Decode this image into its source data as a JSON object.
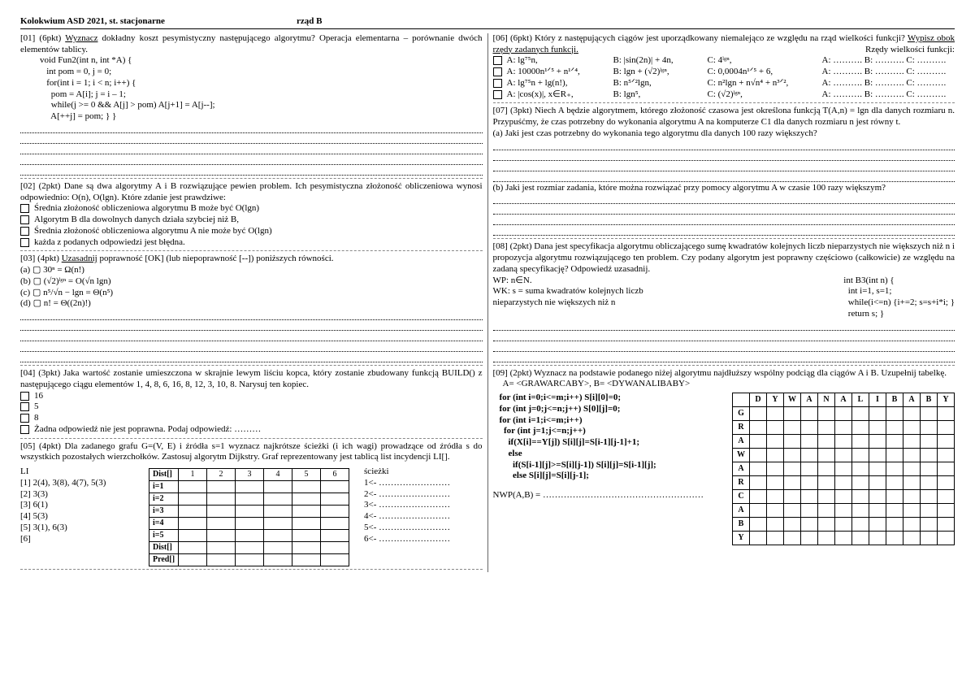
{
  "header": {
    "left": "Kolokwium ASD 2021, st. stacjonarne",
    "right": "rząd B"
  },
  "q01": {
    "head": "[01] (6pkt) ",
    "uword": "Wyznacz",
    "rest": " dokładny koszt pesymistyczny następującego algorytmu? Operacja elementarna – porównanie dwóch elementów tablicy.",
    "code": [
      "void Fun2(int n, int *A) {",
      "   int pom = 0, j = 0;",
      "   for(int i = 1; i < n; i++) {",
      "     pom = A[i]; j = i – 1;",
      "     while(j >= 0 && A[j] > pom) A[j+1] = A[j--];",
      "     A[++j] = pom; } }"
    ]
  },
  "q02": {
    "head": "[02] (2pkt) Dane są dwa algorytmy A i B rozwiązujące pewien problem. Ich pesymistyczna złożoność obliczeniowa wynosi odpowiednio: O(n), O(lgn). Które zdanie jest prawdziwe:",
    "opts": [
      "Średnia złożoność obliczeniowa algorytmu B może być O(lgn)",
      "Algorytm B dla dowolnych danych działa szybciej niż B,",
      "Średnia złożoność obliczeniowa algorytmu A nie może być O(lgn)",
      "każda z podanych odpowiedzi jest błędna."
    ]
  },
  "q03": {
    "head": "[03] (4pkt) ",
    "uword": "Uzasadnij",
    "rest": " poprawność [OK] (lub niepoprawność [--]) poniższych równości.",
    "opts": [
      "(a)   ▢     30ⁿ = Ω(n!)",
      "(b)   ▢     (√2)ˡᵍⁿ = O(√n lgn)",
      "(c)   ▢     n⁵/√n − lgn = Θ(n⁵)",
      "(d)   ▢     n! = Θ((2n)!)"
    ]
  },
  "q04": {
    "head": "[04] (3pkt) Jaka wartość zostanie umieszczona w skrajnie lewym liściu kopca, który zostanie zbudowany funkcją BUILD() z następującego ciągu elementów 1, 4, 8, 6, 16, 8, 12, 3, 10, 8. Narysuj ten kopiec.",
    "opts": [
      "16",
      "5",
      "8",
      "Żadna odpowiedź nie jest poprawna. Podaj odpowiedź: ………"
    ]
  },
  "q05": {
    "head": "[05] (4pkt) Dla zadanego grafu G=(V, E) i źródła s=1 wyznacz najkrótsze ścieżki (i ich wagi) prowadzące od źródła s do wszystkich pozostałych wierzchołków. Zastosuj algorytm Dijkstry. Graf reprezentowany jest tablicą list incydencji LI[].",
    "li": [
      "LI",
      "[1] 2(4), 3(8), 4(7), 5(3)",
      "[2] 3(3)",
      "[3] 6(1)",
      "[4] 5(3)",
      "[5] 3(1), 6(3)",
      "[6]"
    ],
    "distHeader": [
      "Dist[]",
      "1",
      "2",
      "3",
      "4",
      "5",
      "6"
    ],
    "distRows": [
      "i=1",
      "i=2",
      "i=3",
      "i=4",
      "i=5",
      "Dist[]",
      "Pred[]"
    ],
    "paths": [
      "ścieżki",
      "1<- ……………………",
      "2<- ……………………",
      "3<- ……………………",
      "4<- ……………………",
      "5<- ……………………",
      "6<- ……………………"
    ]
  },
  "q06": {
    "head": "[06] (6pkt) Który z następujących ciągów jest uporządkowany niemalejąco ze względu na rząd wielkości funkcji? ",
    "uword": "Wypisz obok rzędy zadanych funkcji.",
    "rlabel": "Rzędy wielkości funkcji:",
    "rows": [
      {
        "a": "A: lg⁷⁵n,",
        "b": "B: |sin(2n)| + 4n,",
        "c": "C: 4ˡᵍⁿ,",
        "r": "A: ………. B: ………. C: ………."
      },
      {
        "a": "A: 10000n¹ᐟ⁵ + n¹ᐟ⁴,",
        "b": "B: lgn + (√2)ˡᵍⁿ,",
        "c": "C: 0,0004n¹ᐟ⁵ + 6,",
        "r": "A: ………. B: ………. C: ………."
      },
      {
        "a": "A: lg⁷⁵n + lg(n!),",
        "b": "B: n⁵ᐟ²lgn,",
        "c": "C: n²lgn + n√n⁴ + n³ᐟ²,",
        "r": "A: ………. B: ………. C: ………."
      },
      {
        "a": "A: |cos(x)|, x∈R₊,",
        "b": "B: lgn⁵,",
        "c": "C: (√2)ˡᵍⁿ,",
        "r": "A: ………. B: ………. C: ………."
      }
    ]
  },
  "q07": {
    "head": "[07] (3pkt) Niech A będzie algorytmem, którego złożoność czasowa jest określona funkcją T(A,n) = lgn dla danych rozmiaru n. Przypuśćmy, że czas potrzebny do wykonania algorytmu A na komputerze C1 dla danych rozmiaru n jest równy t.",
    "a": "(a)  Jaki jest czas potrzebny do wykonania tego algorytmu dla danych 100 razy większych?",
    "b": "(b)  Jaki jest rozmiar zadania, które można rozwiązać przy pomocy algorytmu A w czasie 100 razy większym?"
  },
  "q08": {
    "head": "[08] (2pkt) Dana jest specyfikacja algorytmu obliczającego sumę kwadratów kolejnych liczb nieparzystych nie większych niż n i propozycja algorytmu rozwiązującego ten problem. Czy podany algorytm jest poprawny częściowo (całkowicie) ze względu na zadaną specyfikację? Odpowiedź uzasadnij.",
    "wp": "WP:  n∈N.",
    "wk1": "WK:  s = suma kwadratów kolejnych liczb",
    "wk2": "        nieparzystych nie większych niż n",
    "code": [
      "int B3(int n) {",
      "  int i=1, s=1;",
      "  while(i<=n) {i+=2; s=s+i*i; }",
      "  return s; }"
    ]
  },
  "q09": {
    "head": "[09] (2pkt) Wyznacz na podstawie podanego niżej algorytmu najdłuższy wspólny podciąg dla ciągów A i B. Uzupełnij tabelkę.",
    "ab": "A= <GRAWARCABY>,  B= <DYWANALIBABY>",
    "code": [
      "for (int i=0;i<=m;i++) S[i][0]=0;",
      "for (int j=0;j<=n;j++) S[0][j]=0;",
      "for (int i=1;i<=m;i++)",
      "  for (int j=1;j<=n;j++)",
      "    if(X[i]==Y[j]) S[i][j]=S[i-1][j-1]+1;",
      "    else",
      "      if(S[i-1][j]>=S[i][j-1]) S[i][j]=S[i-1][j];",
      "      else S[i][j]=S[i][j-1];"
    ],
    "nwp": "NWP(A,B) = ………………………………………………",
    "cols": [
      "",
      "D",
      "Y",
      "W",
      "A",
      "N",
      "A",
      "L",
      "I",
      "B",
      "A",
      "B",
      "Y"
    ],
    "rows": [
      "G",
      "R",
      "A",
      "W",
      "A",
      "R",
      "C",
      "A",
      "B",
      "Y"
    ]
  }
}
